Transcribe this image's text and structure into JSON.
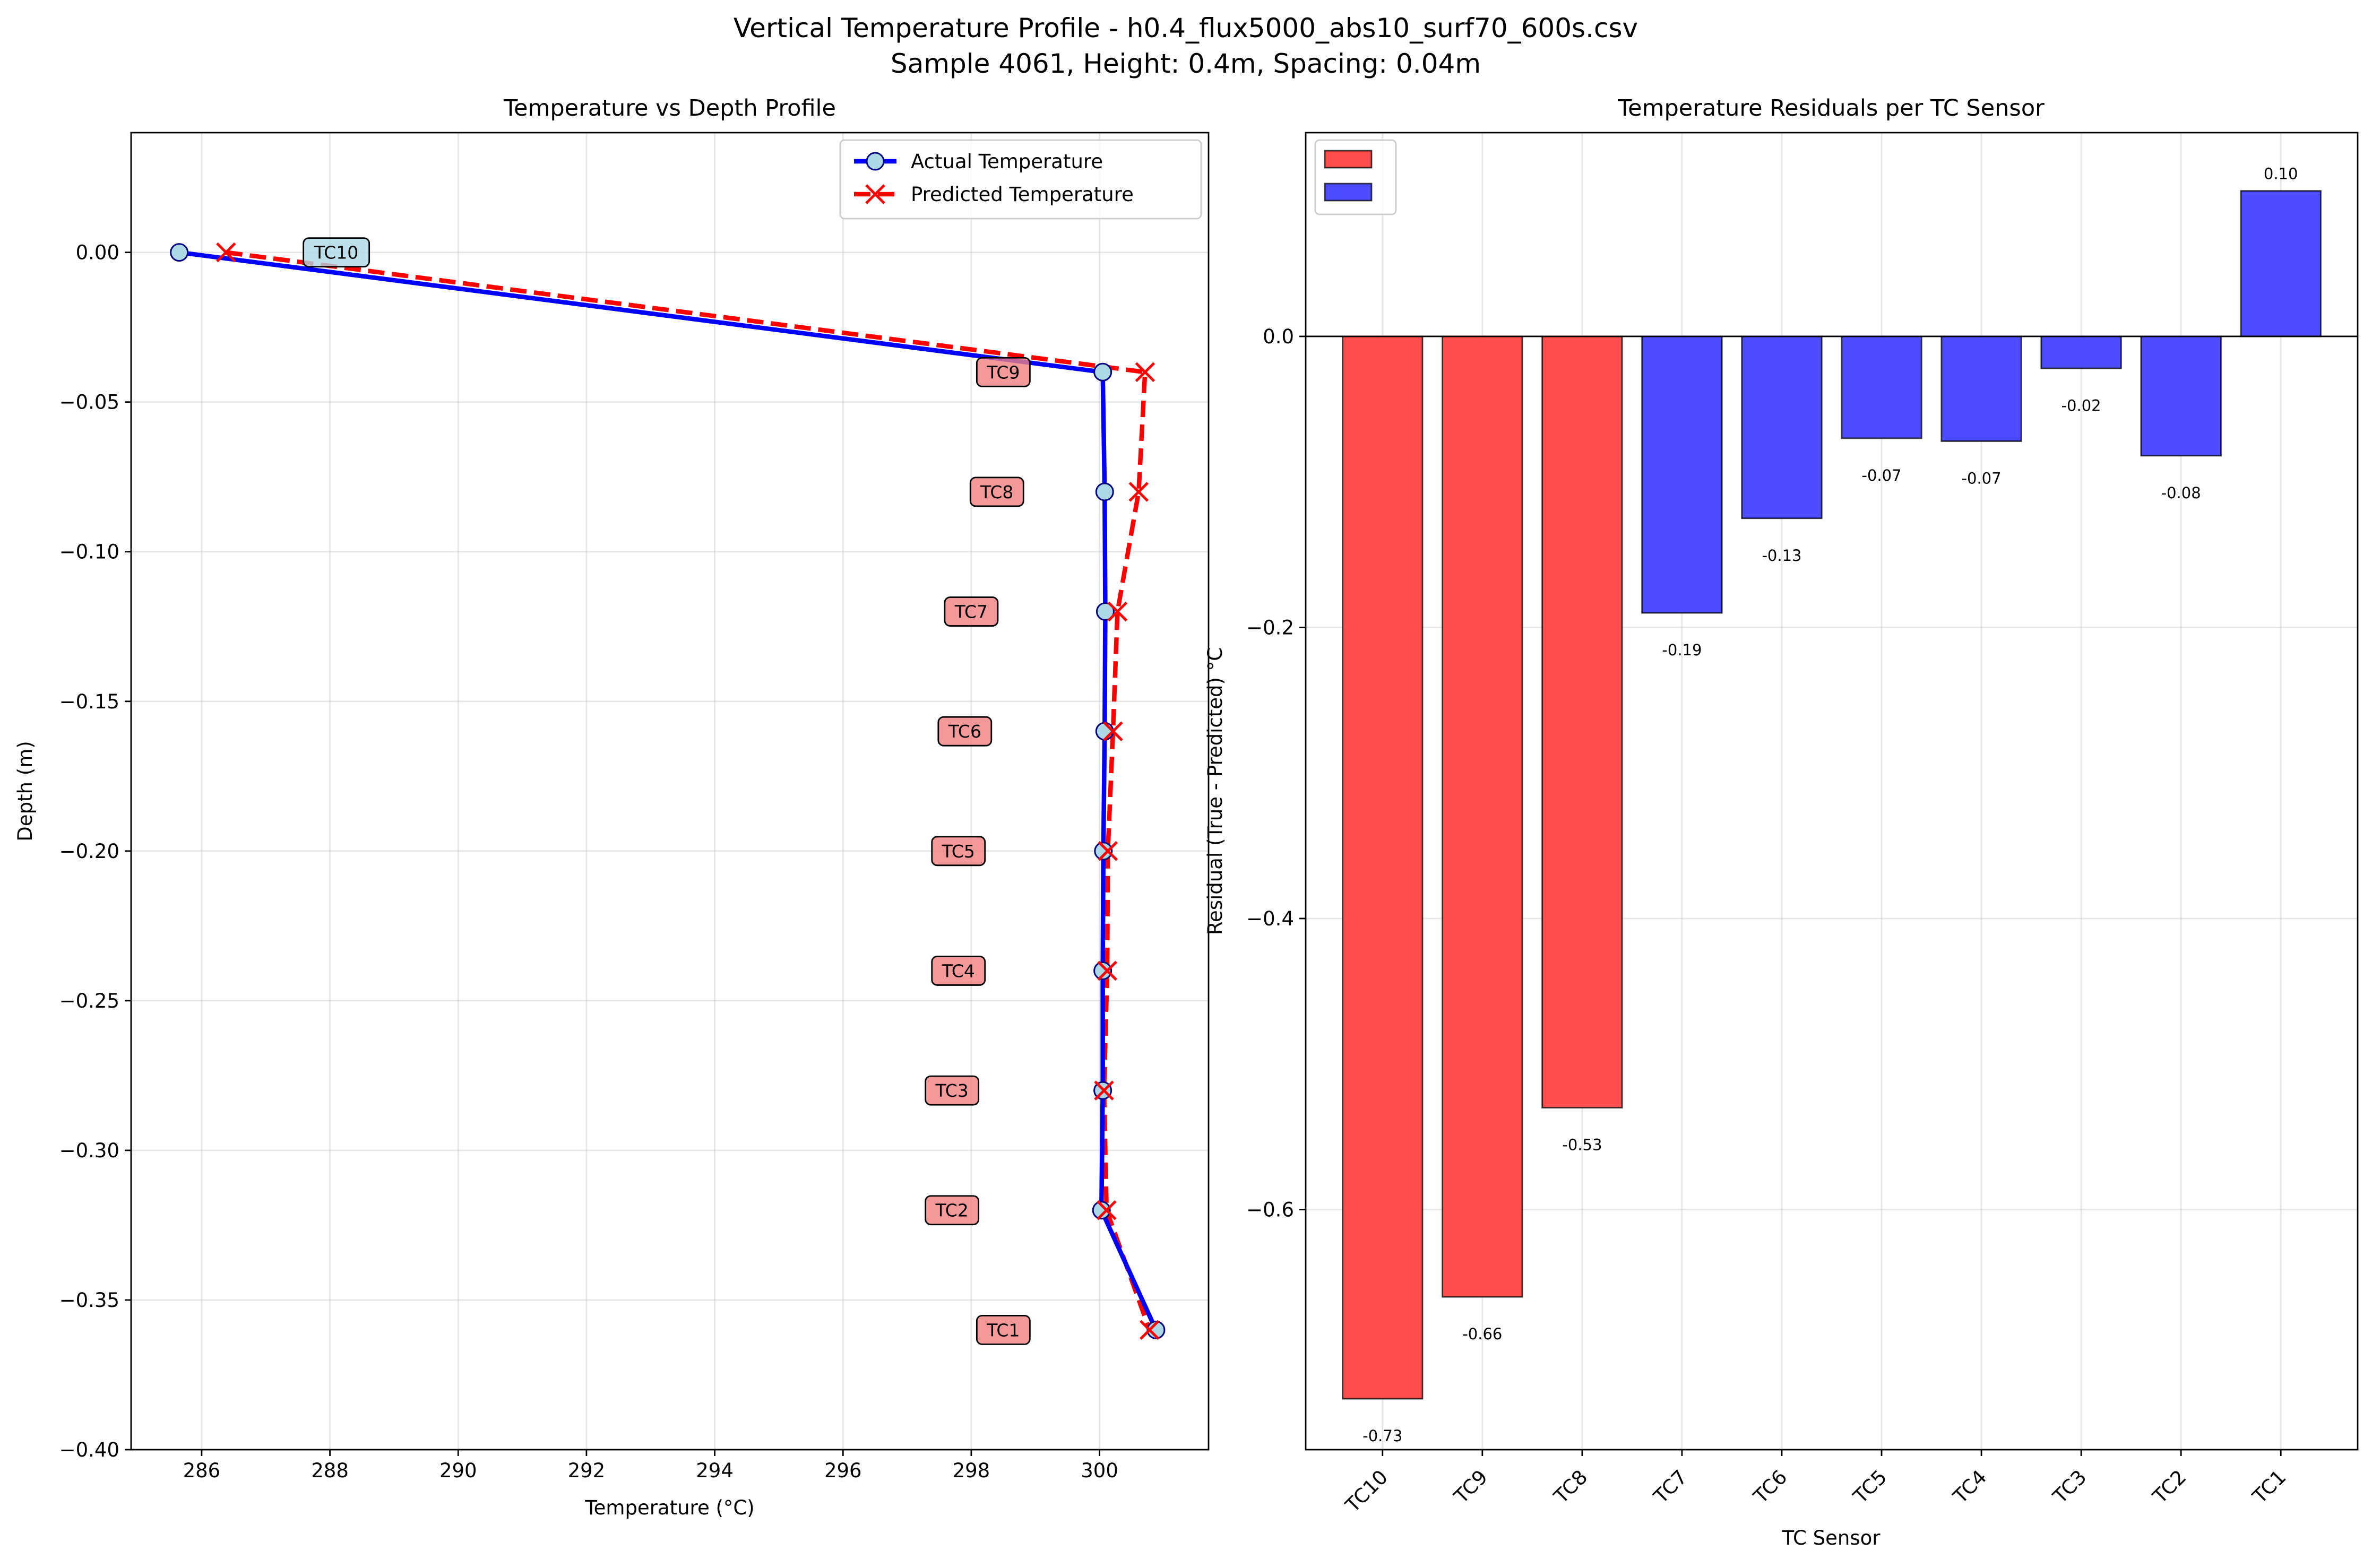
{
  "figure": {
    "suptitle_line1": "Vertical Temperature Profile - h0.4_flux5000_abs10_surf70_600s.csv",
    "suptitle_line2": "Sample 4061, Height: 0.4m, Spacing: 0.04m"
  },
  "chart_data": [
    {
      "type": "line",
      "title": "Temperature vs Depth Profile",
      "xlabel": "Temperature (°C)",
      "ylabel": "Depth (m)",
      "xlim": [
        284.9,
        301.7
      ],
      "ylim": [
        -0.4,
        0.04
      ],
      "xticks": [
        286,
        288,
        290,
        292,
        294,
        296,
        298,
        300
      ],
      "xtick_labels": [
        "286",
        "288",
        "290",
        "292",
        "294",
        "296",
        "298",
        "300"
      ],
      "yticks": [
        0.0,
        -0.05,
        -0.1,
        -0.15,
        -0.2,
        -0.25,
        -0.3,
        -0.35,
        -0.4
      ],
      "ytick_labels": [
        "0.00",
        "−0.05",
        "−0.10",
        "−0.15",
        "−0.20",
        "−0.25",
        "−0.30",
        "−0.35",
        "−0.40"
      ],
      "grid": true,
      "legend_position": "top-right",
      "series": [
        {
          "name": "Actual Temperature",
          "color": "#0000ff",
          "marker_face": "#add8e6",
          "marker": "circle",
          "line_style": "solid",
          "points": [
            {
              "x": 285.65,
              "y": 0.0
            },
            {
              "x": 300.05,
              "y": -0.04
            },
            {
              "x": 300.08,
              "y": -0.08
            },
            {
              "x": 300.09,
              "y": -0.12
            },
            {
              "x": 300.08,
              "y": -0.16
            },
            {
              "x": 300.06,
              "y": -0.2
            },
            {
              "x": 300.05,
              "y": -0.24
            },
            {
              "x": 300.05,
              "y": -0.28
            },
            {
              "x": 300.03,
              "y": -0.32
            },
            {
              "x": 300.88,
              "y": -0.36
            }
          ]
        },
        {
          "name": "Predicted Temperature",
          "color": "#ff0000",
          "marker": "x",
          "line_style": "dashed",
          "points": [
            {
              "x": 286.38,
              "y": 0.0
            },
            {
              "x": 300.71,
              "y": -0.04
            },
            {
              "x": 300.61,
              "y": -0.08
            },
            {
              "x": 300.28,
              "y": -0.12
            },
            {
              "x": 300.21,
              "y": -0.16
            },
            {
              "x": 300.13,
              "y": -0.2
            },
            {
              "x": 300.12,
              "y": -0.24
            },
            {
              "x": 300.07,
              "y": -0.28
            },
            {
              "x": 300.11,
              "y": -0.32
            },
            {
              "x": 300.78,
              "y": -0.36
            }
          ]
        }
      ],
      "annotations": [
        {
          "text": "TC10",
          "x": 288.1,
          "y": 0.0,
          "bg": "#add8e6"
        },
        {
          "text": "TC9",
          "x": 298.5,
          "y": -0.04,
          "bg": "#f08080"
        },
        {
          "text": "TC8",
          "x": 298.4,
          "y": -0.08,
          "bg": "#f08080"
        },
        {
          "text": "TC7",
          "x": 298.0,
          "y": -0.12,
          "bg": "#f08080"
        },
        {
          "text": "TC6",
          "x": 297.9,
          "y": -0.16,
          "bg": "#f08080"
        },
        {
          "text": "TC5",
          "x": 297.8,
          "y": -0.2,
          "bg": "#f08080"
        },
        {
          "text": "TC4",
          "x": 297.8,
          "y": -0.24,
          "bg": "#f08080"
        },
        {
          "text": "TC3",
          "x": 297.7,
          "y": -0.28,
          "bg": "#f08080"
        },
        {
          "text": "TC2",
          "x": 297.7,
          "y": -0.32,
          "bg": "#f08080"
        },
        {
          "text": "TC1",
          "x": 298.5,
          "y": -0.36,
          "bg": "#f08080"
        }
      ]
    },
    {
      "type": "bar",
      "title": "Temperature Residuals per TC Sensor",
      "xlabel": "TC Sensor",
      "ylabel": "Residual (True - Predicted) °C",
      "ylim": [
        -0.765,
        0.14
      ],
      "yticks": [
        0.0,
        -0.2,
        -0.4,
        -0.6
      ],
      "ytick_labels": [
        "0.0",
        "−0.2",
        "−0.4",
        "−0.6"
      ],
      "grid": true,
      "legend_position": "top-left",
      "legend_entries": [
        {
          "label": "",
          "color": "#ff4d4d"
        },
        {
          "label": "",
          "color": "#4d4dff"
        }
      ],
      "categories": [
        "TC10",
        "TC9",
        "TC8",
        "TC7",
        "TC6",
        "TC5",
        "TC4",
        "TC3",
        "TC2",
        "TC1"
      ],
      "values": [
        -0.73,
        -0.66,
        -0.53,
        -0.19,
        -0.125,
        -0.07,
        -0.072,
        -0.022,
        -0.082,
        0.1
      ],
      "value_labels": [
        "-0.73",
        "-0.66",
        "-0.53",
        "-0.19",
        "-0.13",
        "-0.07",
        "-0.07",
        "-0.02",
        "-0.08",
        "0.10"
      ],
      "colors": [
        "#ff4d4d",
        "#ff4d4d",
        "#ff4d4d",
        "#4d4dff",
        "#4d4dff",
        "#4d4dff",
        "#4d4dff",
        "#4d4dff",
        "#4d4dff",
        "#4d4dff"
      ]
    }
  ]
}
